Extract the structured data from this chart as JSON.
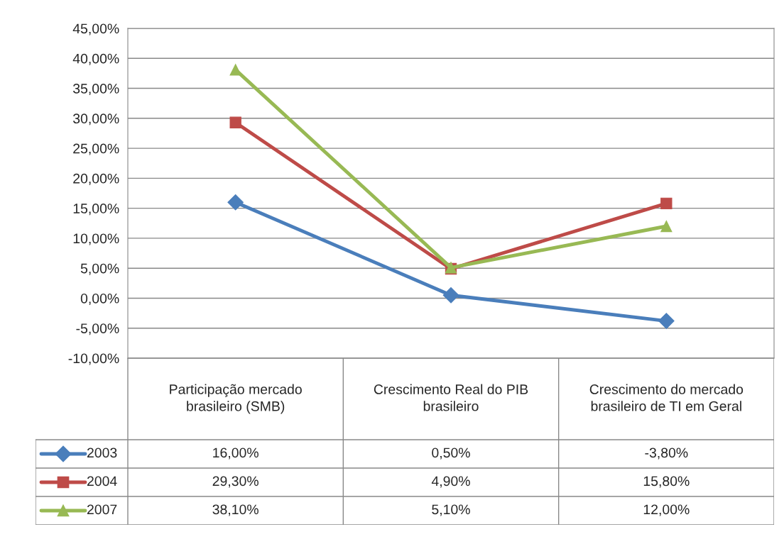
{
  "chart_data": {
    "type": "line",
    "categories": [
      "Participação mercado brasileiro (SMB)",
      "Crescimento Real do PIB brasileiro",
      "Crescimento do mercado brasileiro de TI em Geral"
    ],
    "series": [
      {
        "name": "2003",
        "color": "#4a7ebb",
        "marker": "diamond",
        "values": [
          16.0,
          0.5,
          -3.8
        ],
        "value_labels": [
          "16,00%",
          "0,50%",
          "-3,80%"
        ]
      },
      {
        "name": "2004",
        "color": "#be4b48",
        "marker": "square",
        "values": [
          29.3,
          4.9,
          15.8
        ],
        "value_labels": [
          "29,30%",
          "4,90%",
          "15,80%"
        ]
      },
      {
        "name": "2007",
        "color": "#98b954",
        "marker": "triangle",
        "values": [
          38.1,
          5.1,
          12.0
        ],
        "value_labels": [
          "38,10%",
          "5,10%",
          "12,00%"
        ]
      }
    ],
    "ylim": [
      -10,
      45
    ],
    "yticks": [
      {
        "value": -10,
        "label": "-10,00%"
      },
      {
        "value": -5,
        "label": "-5,00%"
      },
      {
        "value": 0,
        "label": "0,00%"
      },
      {
        "value": 5,
        "label": "5,00%"
      },
      {
        "value": 10,
        "label": "10,00%"
      },
      {
        "value": 15,
        "label": "15,00%"
      },
      {
        "value": 20,
        "label": "20,00%"
      },
      {
        "value": 25,
        "label": "25,00%"
      },
      {
        "value": 30,
        "label": "30,00%"
      },
      {
        "value": 35,
        "label": "35,00%"
      },
      {
        "value": 40,
        "label": "40,00%"
      },
      {
        "value": 45,
        "label": "45,00%"
      }
    ],
    "grid": "y",
    "legend": "bottom left",
    "line_style": "solid"
  }
}
